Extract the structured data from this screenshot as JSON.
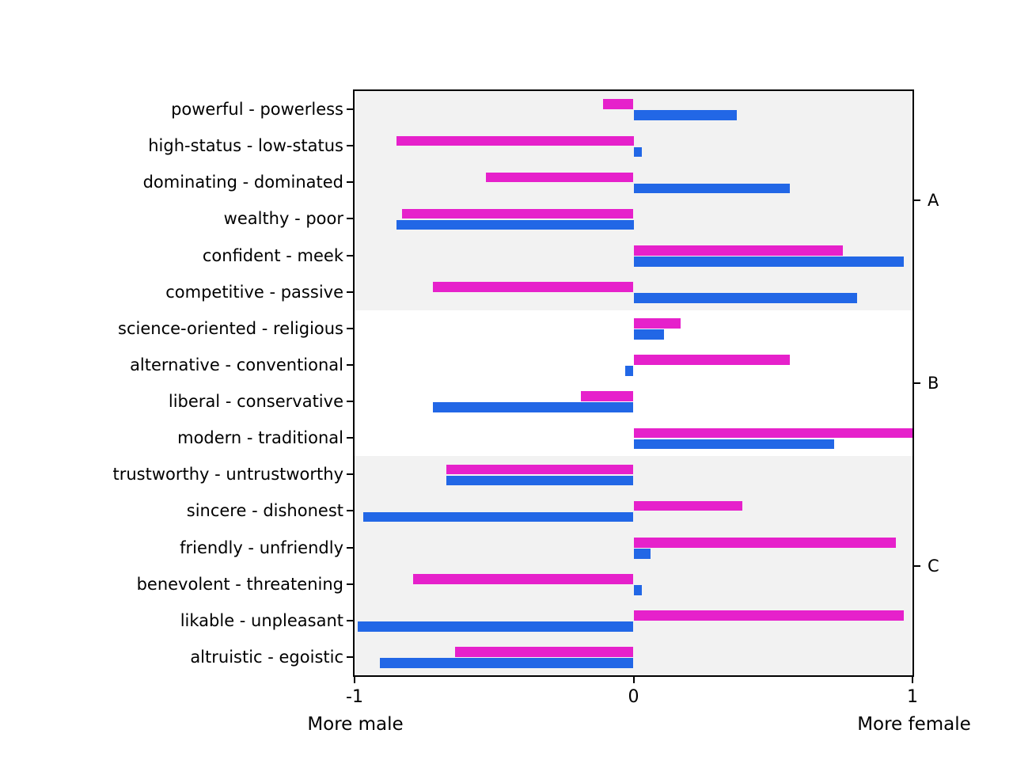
{
  "chart_data": {
    "type": "bar",
    "orientation": "horizontal",
    "title": "",
    "xlim": [
      -1,
      1
    ],
    "grid": false,
    "legend": "none",
    "caption_left": "More male",
    "caption_right": "More female",
    "xticks": [
      {
        "value": -1,
        "label": "-1"
      },
      {
        "value": 0,
        "label": "0"
      },
      {
        "value": 1,
        "label": "1"
      }
    ],
    "categories": [
      "powerful - powerless",
      "high-status - low-status",
      "dominating - dominated",
      "wealthy - poor",
      "confident - meek",
      "competitive - passive",
      "science-oriented - religious",
      "alternative - conventional",
      "liberal - conservative",
      "modern - traditional",
      "trustworthy - untrustworthy",
      "sincere - dishonest",
      "friendly - unfriendly",
      "benevolent - threatening",
      "likable - unpleasant",
      "altruistic - egoistic"
    ],
    "series": [
      {
        "name": "magenta-series",
        "color": "#e621cb",
        "values": [
          -0.11,
          -0.85,
          -0.53,
          -0.83,
          0.75,
          -0.72,
          0.17,
          0.56,
          -0.19,
          1.0,
          -0.67,
          0.39,
          0.94,
          -0.79,
          0.97,
          -0.64
        ]
      },
      {
        "name": "blue-series",
        "color": "#2267e6",
        "values": [
          0.37,
          0.03,
          0.56,
          -0.85,
          0.97,
          0.8,
          0.11,
          -0.03,
          -0.72,
          0.72,
          -0.67,
          -0.97,
          0.06,
          0.03,
          -0.99,
          -0.91
        ]
      }
    ],
    "groups": [
      {
        "label": "A",
        "start_row": 0,
        "end_row": 5,
        "band_color": "#f2f2f2"
      },
      {
        "label": "B",
        "start_row": 6,
        "end_row": 9,
        "band_color": "#ffffff"
      },
      {
        "label": "C",
        "start_row": 10,
        "end_row": 15,
        "band_color": "#f2f2f2"
      }
    ],
    "spine_color": "#000000",
    "text_color": "#000000"
  }
}
